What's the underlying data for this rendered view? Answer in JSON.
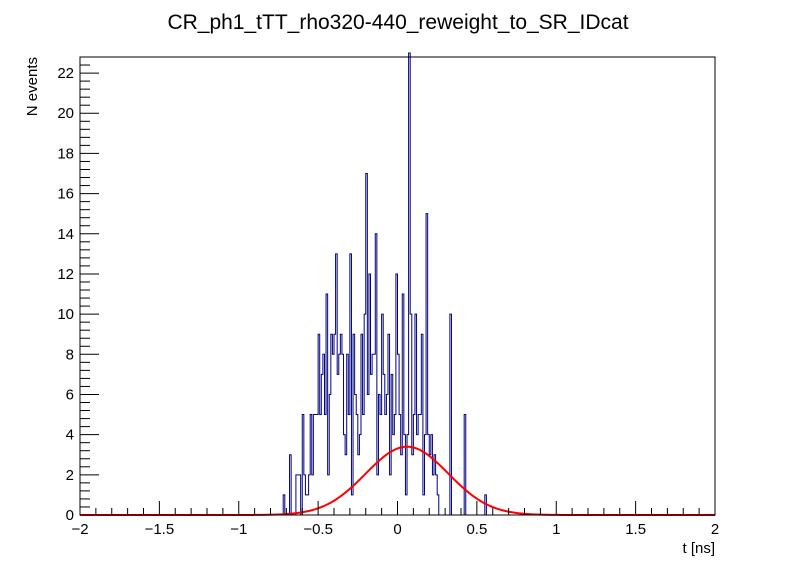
{
  "chart_data": {
    "type": "histogram",
    "title": "CR_ph1_tTT_rho320-440_reweight_to_SR_IDcat",
    "xlabel": "t [ns]",
    "ylabel": "N events",
    "xlim": [
      -2,
      2
    ],
    "ylim": [
      0,
      22.8
    ],
    "x_ticks": [
      "−2",
      "−1.5",
      "−1",
      "−0.5",
      "0",
      "0.5",
      "1",
      "1.5",
      "2"
    ],
    "y_ticks": [
      "0",
      "2",
      "4",
      "6",
      "8",
      "10",
      "12",
      "14",
      "16",
      "18",
      "20",
      "22"
    ],
    "grid": false,
    "legend": "none",
    "series": [
      {
        "kind": "step",
        "color": "#000080",
        "bin_start": -0.72,
        "bin_width": 0.01,
        "values": [
          1,
          0,
          0,
          0,
          3,
          0,
          0,
          0,
          2,
          2,
          2,
          0,
          5,
          2,
          1,
          1,
          2,
          5,
          2,
          5,
          5,
          5,
          9,
          5,
          7,
          8,
          5,
          11,
          2,
          6,
          9,
          8,
          9,
          13,
          7,
          8,
          9,
          8,
          4,
          3,
          8,
          5,
          13,
          1,
          9,
          6,
          5,
          3,
          4,
          9,
          5,
          10,
          17,
          6,
          12,
          7,
          8,
          8,
          14,
          2,
          6,
          5,
          10,
          7,
          5,
          6,
          9,
          2,
          7,
          4,
          5,
          12,
          8,
          5,
          3,
          11,
          4,
          1,
          4,
          23,
          10,
          3,
          5,
          10,
          4,
          5,
          5,
          9,
          1,
          4,
          15,
          4,
          3,
          4,
          2,
          3,
          2,
          1,
          0,
          0,
          0,
          0,
          0,
          0,
          0,
          10,
          0,
          0,
          0,
          0,
          0,
          0,
          0,
          0,
          5,
          0,
          0,
          0,
          0,
          0,
          0,
          0,
          0,
          0,
          0,
          0,
          0,
          1
        ]
      },
      {
        "kind": "curve",
        "color": "#ff0000",
        "function": "gaussian",
        "amplitude": 3.4,
        "mean": 0.06,
        "sigma": 0.26
      }
    ]
  }
}
